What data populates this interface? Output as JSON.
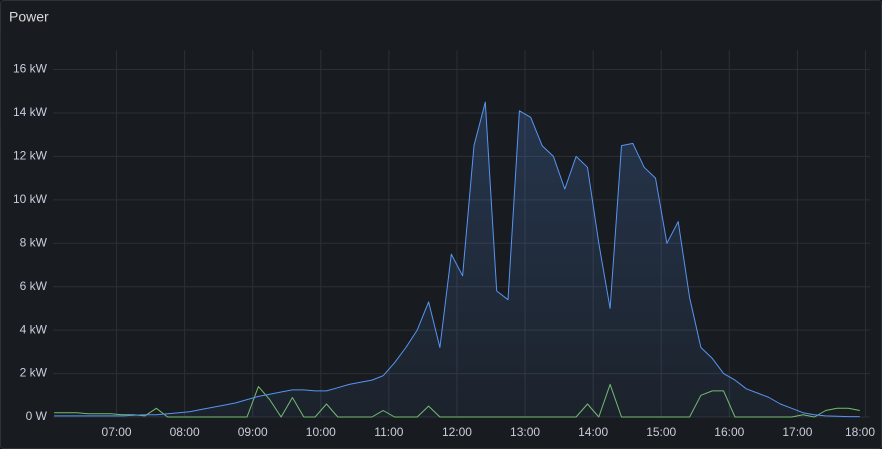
{
  "chart_data": {
    "type": "line",
    "title": "Power",
    "x": [
      365,
      375,
      385,
      395,
      405,
      415,
      425,
      435,
      445,
      455,
      465,
      475,
      485,
      495,
      505,
      515,
      525,
      535,
      545,
      555,
      565,
      575,
      585,
      595,
      605,
      615,
      625,
      635,
      645,
      655,
      665,
      675,
      685,
      695,
      705,
      715,
      725,
      735,
      745,
      755,
      765,
      775,
      785,
      795,
      805,
      815,
      825,
      835,
      845,
      855,
      865,
      875,
      885,
      895,
      905,
      915,
      925,
      935,
      945,
      955,
      965,
      975,
      985,
      995,
      1005,
      1015,
      1025,
      1035,
      1045,
      1055,
      1065,
      1075
    ],
    "series": [
      {
        "color": "#5794f2",
        "fill": true,
        "values": [
          0.05,
          0.05,
          0.05,
          0.05,
          0.05,
          0.05,
          0.05,
          0.08,
          0.1,
          0.1,
          0.15,
          0.2,
          0.25,
          0.35,
          0.45,
          0.55,
          0.65,
          0.8,
          0.95,
          1.05,
          1.15,
          1.25,
          1.25,
          1.2,
          1.2,
          1.35,
          1.5,
          1.6,
          1.7,
          1.9,
          2.5,
          3.2,
          4.0,
          5.3,
          3.2,
          7.5,
          6.5,
          12.5,
          14.5,
          5.8,
          5.4,
          14.1,
          13.8,
          12.5,
          12.0,
          10.5,
          12.0,
          11.5,
          8.0,
          5.0,
          12.5,
          12.6,
          11.5,
          11.0,
          8.0,
          9.0,
          5.5,
          3.2,
          2.7,
          2.0,
          1.7,
          1.3,
          1.1,
          0.9,
          0.6,
          0.4,
          0.2,
          0.1,
          0.05,
          0.03,
          0.02,
          0.02
        ]
      },
      {
        "color": "#73bf69",
        "fill": false,
        "values": [
          0.2,
          0.2,
          0.2,
          0.15,
          0.15,
          0.15,
          0.1,
          0.1,
          0.05,
          0.4,
          0,
          0,
          0,
          0,
          0,
          0,
          0,
          0,
          1.4,
          0.8,
          0,
          0.9,
          0,
          0,
          0.6,
          0,
          0,
          0,
          0,
          0.3,
          0,
          0,
          0,
          0.5,
          0,
          0,
          0,
          0,
          0,
          0,
          0,
          0,
          0,
          0,
          0,
          0,
          0,
          0.6,
          0,
          1.5,
          0,
          0,
          0,
          0,
          0,
          0,
          0,
          1.0,
          1.2,
          1.2,
          0,
          0,
          0,
          0,
          0,
          0,
          0.1,
          0,
          0.3,
          0.4,
          0.4,
          0.3
        ]
      }
    ],
    "xlim": [
      364,
      1084
    ],
    "xticks": [
      {
        "value": 420,
        "label": "07:00"
      },
      {
        "value": 480,
        "label": "08:00"
      },
      {
        "value": 540,
        "label": "09:00"
      },
      {
        "value": 600,
        "label": "10:00"
      },
      {
        "value": 660,
        "label": "11:00"
      },
      {
        "value": 720,
        "label": "12:00"
      },
      {
        "value": 780,
        "label": "13:00"
      },
      {
        "value": 840,
        "label": "14:00"
      },
      {
        "value": 900,
        "label": "15:00"
      },
      {
        "value": 960,
        "label": "16:00"
      },
      {
        "value": 1020,
        "label": "17:00"
      },
      {
        "value": 1080,
        "label": "18:00"
      }
    ],
    "ylim": [
      0,
      16.9
    ],
    "yticks": [
      {
        "value": 0,
        "label": "0 W"
      },
      {
        "value": 2,
        "label": "2 kW"
      },
      {
        "value": 4,
        "label": "4 kW"
      },
      {
        "value": 6,
        "label": "6 kW"
      },
      {
        "value": 8,
        "label": "8 kW"
      },
      {
        "value": 10,
        "label": "10 kW"
      },
      {
        "value": 12,
        "label": "12 kW"
      },
      {
        "value": 14,
        "label": "14 kW"
      },
      {
        "value": 16,
        "label": "16 kW"
      }
    ],
    "grid": true
  }
}
